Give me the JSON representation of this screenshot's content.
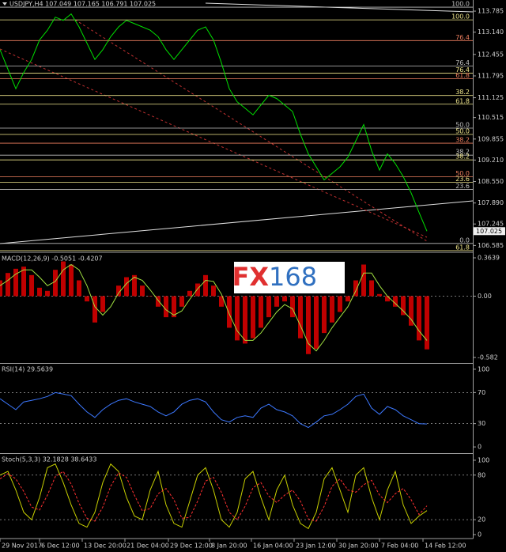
{
  "chart_data": [
    {
      "type": "line",
      "title": "USDJPY,H4  107.049 107.165 106.791 107.025",
      "color": "#00e000",
      "values": [
        112.6,
        112.0,
        111.4,
        111.9,
        112.3,
        112.9,
        113.2,
        113.6,
        113.5,
        113.7,
        113.3,
        112.8,
        112.3,
        112.6,
        113.0,
        113.3,
        113.5,
        113.4,
        113.3,
        113.2,
        113.0,
        112.6,
        112.3,
        112.6,
        112.9,
        113.2,
        113.3,
        112.9,
        112.2,
        111.4,
        111.0,
        110.8,
        110.6,
        110.9,
        111.2,
        111.1,
        110.9,
        110.7,
        110.0,
        109.4,
        109.0,
        108.6,
        108.8,
        109.0,
        109.3,
        109.8,
        110.3,
        109.5,
        108.9,
        109.4,
        109.1,
        108.7,
        108.2,
        107.6,
        107.025
      ],
      "ylim": [
        106.4,
        114.127
      ],
      "yticks": [
        113.785,
        {
          "value": 113.14,
          "label": "113.140"
        },
        112.455,
        111.795,
        111.125,
        110.515,
        109.855,
        {
          "value": 109.21,
          "label": "109.210"
        },
        {
          "value": 108.55,
          "label": "108.550"
        },
        {
          "value": 107.89,
          "label": "107.890"
        },
        107.245,
        106.585
      ],
      "levels": [
        {
          "value": 113.907,
          "label": "100.0",
          "color": "#c0c0c0"
        },
        {
          "value": 113.516,
          "label": "100.0",
          "color": "#f0e68c"
        },
        {
          "value": 112.88,
          "label": "76.4",
          "color": "#f08060"
        },
        {
          "value": 112.098,
          "label": "76.4",
          "color": "#c0c0c0"
        },
        {
          "value": 111.878,
          "label": "76.4",
          "color": "#f0e68c"
        },
        {
          "value": 111.707,
          "label": "61.8",
          "color": "#f08060"
        },
        {
          "value": 111.194,
          "label": "38.2",
          "color": "#f0e68c"
        },
        {
          "value": 110.925,
          "label": "61.8",
          "color": "#f0e68c"
        },
        {
          "value": 110.191,
          "label": "50.0",
          "color": "#c0c0c0"
        },
        {
          "value": 109.996,
          "label": "50.0",
          "color": "#f0e68c"
        },
        {
          "value": 109.727,
          "label": "38.2",
          "color": "#f08060"
        },
        {
          "value": 109.36,
          "label": "38.2",
          "color": "#c0c0c0"
        },
        {
          "value": 109.214,
          "label": "38.2",
          "color": "#f0e68c"
        },
        {
          "value": 108.7,
          "label": "50.0",
          "color": "#f08060"
        },
        {
          "value": 108.529,
          "label": "23.6",
          "color": "#f0e68c"
        },
        {
          "value": 108.309,
          "label": "23.6",
          "color": "#c0c0c0"
        },
        {
          "value": 106.647,
          "label": "0.0",
          "color": "#c0c0c0"
        },
        {
          "value": 106.427,
          "label": "61.8",
          "color": "#f0e68c"
        }
      ],
      "watermark": [
        "FX",
        "168"
      ]
    },
    {
      "type": "bar",
      "title": "MACD(12,26,9) -0.5051 -0.4207",
      "series": [
        {
          "type": "bar",
          "color": "#c00000",
          "values": [
            0.15,
            0.22,
            0.26,
            0.28,
            0.2,
            0.08,
            0.05,
            0.25,
            0.33,
            0.3,
            0.15,
            -0.05,
            -0.25,
            -0.15,
            0,
            0.1,
            0.18,
            0.2,
            0.1,
            0,
            -0.1,
            -0.2,
            -0.2,
            -0.1,
            0.05,
            0.12,
            0.2,
            0.1,
            -0.1,
            -0.3,
            -0.42,
            -0.45,
            -0.4,
            -0.3,
            -0.2,
            -0.1,
            -0.05,
            -0.2,
            -0.4,
            -0.55,
            -0.5,
            -0.35,
            -0.25,
            -0.15,
            -0.05,
            0.15,
            0.3,
            0.15,
            0.02,
            -0.05,
            -0.1,
            -0.18,
            -0.28,
            -0.42,
            -0.5051
          ]
        },
        {
          "type": "line",
          "color": "#a0e040",
          "values": [
            0.1,
            0.15,
            0.21,
            0.25,
            0.25,
            0.18,
            0.1,
            0.14,
            0.25,
            0.3,
            0.25,
            0.1,
            -0.1,
            -0.18,
            -0.1,
            0.03,
            0.12,
            0.18,
            0.15,
            0.06,
            -0.04,
            -0.13,
            -0.18,
            -0.14,
            -0.03,
            0.07,
            0.15,
            0.14,
            0.02,
            -0.17,
            -0.33,
            -0.42,
            -0.42,
            -0.35,
            -0.25,
            -0.15,
            -0.08,
            -0.12,
            -0.28,
            -0.45,
            -0.52,
            -0.42,
            -0.3,
            -0.2,
            -0.1,
            0.05,
            0.22,
            0.22,
            0.1,
            0.0,
            -0.07,
            -0.14,
            -0.22,
            -0.33,
            -0.4207
          ]
        }
      ],
      "ylim": [
        -0.627,
        0.409
      ],
      "yticks": [
        -0.582,
        {
          "value": 0,
          "label": "0.00"
        },
        0.3639
      ],
      "levels": [
        0
      ]
    },
    {
      "type": "line",
      "title": "RSI(14) 29.5639",
      "color": "#3c78ff",
      "values": [
        62,
        55,
        48,
        58,
        60,
        62,
        65,
        70,
        68,
        66,
        55,
        45,
        38,
        48,
        55,
        60,
        62,
        58,
        55,
        52,
        45,
        40,
        45,
        55,
        60,
        62,
        58,
        45,
        35,
        32,
        38,
        40,
        38,
        50,
        55,
        48,
        45,
        40,
        30,
        25,
        32,
        40,
        42,
        48,
        55,
        65,
        68,
        50,
        42,
        52,
        48,
        40,
        35,
        30,
        29.5639
      ],
      "ylim": [
        -7,
        106
      ],
      "yticks": [
        0,
        30,
        70,
        100
      ],
      "levels": [
        30,
        70
      ]
    },
    {
      "type": "line",
      "title": "Stoch(5,3,3) 32.1828 38.6433",
      "series": [
        {
          "type": "line",
          "color": "#c8d000",
          "values": [
            80,
            85,
            60,
            30,
            20,
            50,
            90,
            95,
            70,
            40,
            15,
            10,
            30,
            70,
            95,
            85,
            50,
            25,
            20,
            60,
            85,
            40,
            15,
            10,
            45,
            80,
            90,
            60,
            20,
            10,
            30,
            75,
            85,
            50,
            20,
            60,
            80,
            40,
            15,
            8,
            30,
            75,
            90,
            60,
            30,
            80,
            90,
            50,
            20,
            60,
            85,
            40,
            15,
            25,
            32.1828
          ]
        },
        {
          "type": "line",
          "color": "#ff3030",
          "dashed": true,
          "values": [
            75,
            82,
            75,
            58,
            37,
            33,
            53,
            78,
            85,
            68,
            42,
            22,
            18,
            37,
            65,
            83,
            77,
            53,
            32,
            35,
            55,
            62,
            47,
            22,
            23,
            45,
            72,
            77,
            57,
            30,
            20,
            38,
            63,
            70,
            52,
            43,
            53,
            60,
            45,
            21,
            18,
            38,
            65,
            75,
            60,
            57,
            67,
            73,
            53,
            43,
            55,
            62,
            47,
            27,
            38.6433
          ]
        }
      ],
      "ylim": [
        -4.3,
        107.4
      ],
      "yticks": [
        0,
        20,
        80,
        100
      ],
      "levels": [
        20,
        80
      ],
      "xlim": [
        0,
        59.8
      ],
      "xticks": [
        {
          "value": 0,
          "label": "29 Nov 2017"
        },
        {
          "value": 5,
          "label": "6 Dec 12:00"
        },
        {
          "value": 10.4,
          "label": "13 Dec 20:00"
        },
        {
          "value": 15.8,
          "label": "21 Dec 04:00"
        },
        {
          "value": 21.3,
          "label": "29 Dec 12:00"
        },
        {
          "value": 26.5,
          "label": "8 Jan 20:00"
        },
        {
          "value": 31.8,
          "label": "16 Jan 04:00"
        },
        {
          "value": 37.2,
          "label": "23 Jan 12:00"
        },
        {
          "value": 42.6,
          "label": "30 Jan 20:00"
        },
        {
          "value": 48,
          "label": "7 Feb 04:00"
        },
        {
          "value": 53.5,
          "label": "14 Feb 12:00"
        }
      ]
    }
  ]
}
